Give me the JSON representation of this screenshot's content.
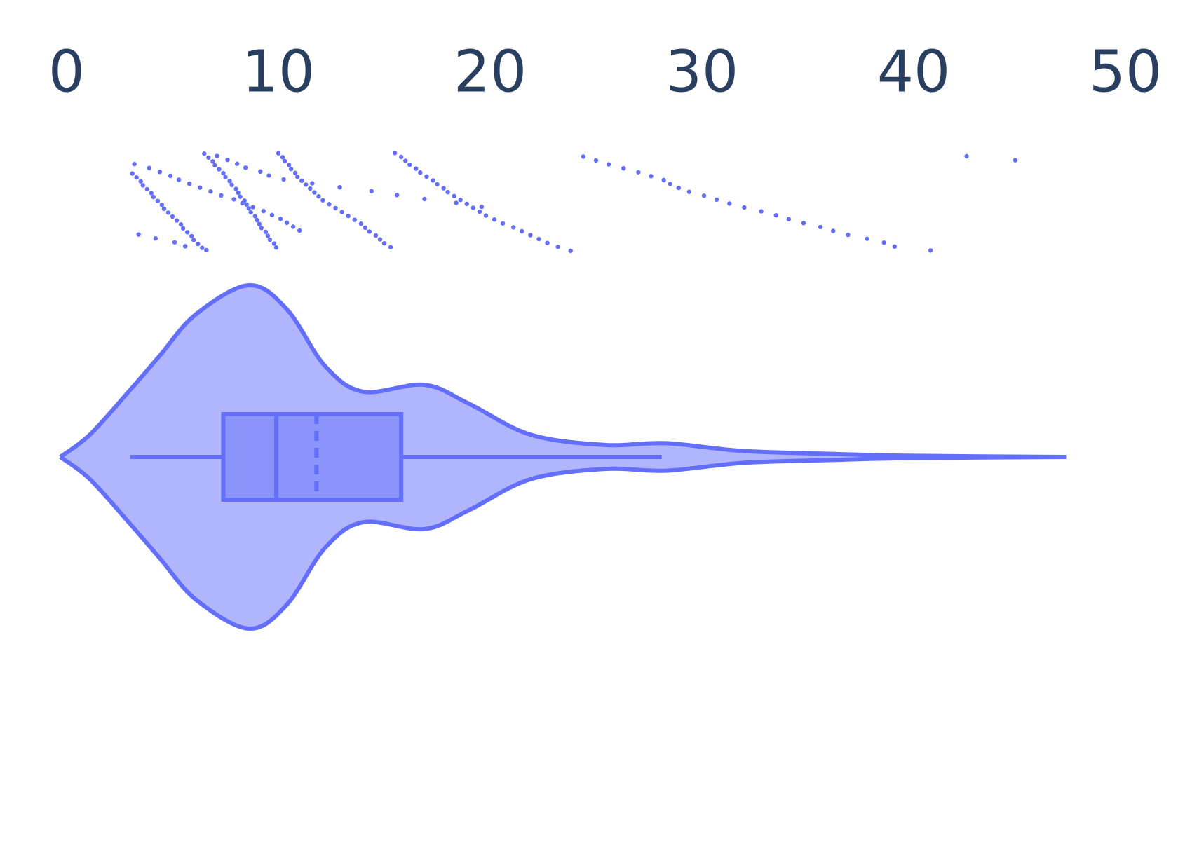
{
  "chart_data": {
    "type": "violin",
    "orientation": "h",
    "color": "#636efa",
    "xlim": [
      -3,
      52
    ],
    "xticks": [
      0,
      10,
      20,
      30,
      40,
      50
    ],
    "violin": {
      "x": [
        -0.3,
        1.1,
        3,
        4.4,
        6.1,
        8.6,
        10.4,
        12.2,
        14,
        16.9,
        19,
        21.9,
        25.4,
        28.3,
        31.9,
        36.1,
        39.7,
        47.2
      ],
      "density": [
        0,
        0.13,
        0.39,
        0.59,
        0.83,
        1,
        0.86,
        0.53,
        0.38,
        0.42,
        0.31,
        0.13,
        0.07,
        0.08,
        0.035,
        0.018,
        0.007,
        0
      ]
    },
    "box": {
      "lowerfence": 3.0,
      "q1": 7.4,
      "median": 9.9,
      "mean": 11.8,
      "q3": 15.8,
      "upperfence": 28.1
    },
    "points": [
      3.1,
      3.3,
      3.5,
      3.6,
      3.8,
      4.0,
      4.1,
      4.3,
      4.5,
      4.6,
      4.8,
      5.0,
      5.2,
      5.4,
      5.5,
      5.7,
      5.9,
      6.0,
      6.2,
      6.4,
      6.5,
      6.7,
      6.9,
      7.0,
      7.2,
      7.4,
      7.5,
      7.7,
      7.8,
      8.0,
      8.1,
      8.2,
      8.4,
      8.5,
      8.6,
      8.7,
      8.9,
      9.0,
      9.1,
      9.2,
      9.4,
      9.5,
      9.6,
      9.8,
      9.9,
      10.0,
      10.2,
      10.3,
      10.5,
      10.6,
      10.8,
      10.9,
      11.1,
      11.3,
      11.5,
      11.7,
      11.9,
      12.1,
      12.4,
      12.7,
      13.0,
      13.3,
      13.6,
      13.9,
      14.1,
      14.3,
      14.6,
      14.8,
      15.0,
      15.3,
      15.5,
      15.8,
      16.0,
      16.2,
      16.5,
      16.7,
      17.0,
      17.3,
      17.5,
      17.8,
      18.0,
      18.3,
      18.6,
      18.9,
      19.2,
      19.5,
      19.8,
      20.2,
      20.6,
      21.1,
      21.5,
      21.9,
      22.3,
      22.7,
      23.2,
      23.8,
      24.4,
      25.0,
      25.6,
      26.3,
      27.0,
      27.6,
      28.2,
      28.5,
      28.9,
      29.4,
      30.1,
      30.7,
      31.3,
      32.0,
      32.8,
      33.5,
      34.1,
      34.8,
      35.6,
      36.2,
      36.9,
      37.8,
      38.6,
      39.1,
      40.8,
      42.5,
      44.8,
      3.2,
      3.9,
      4.4,
      4.9,
      5.3,
      5.8,
      6.3,
      6.8,
      7.3,
      7.9,
      8.3,
      8.8,
      9.3,
      9.7,
      10.1,
      10.4,
      10.7,
      11.0,
      3.4,
      4.2,
      5.1,
      5.6,
      6.6,
      7.1,
      7.6,
      8.05,
      8.45,
      9.15,
      9.55,
      10.25,
      11.6,
      12.9,
      14.4,
      15.6,
      16.9,
      18.4,
      19.6
    ]
  }
}
